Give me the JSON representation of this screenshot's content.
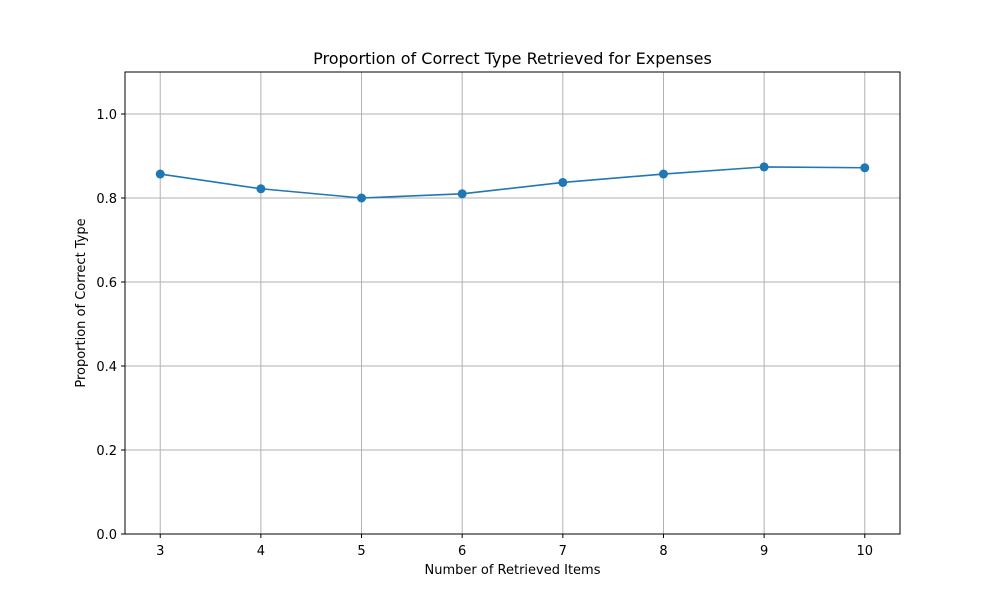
{
  "chart_data": {
    "type": "line",
    "title": "Proportion of Correct Type Retrieved for Expenses",
    "xlabel": "Number of Retrieved Items",
    "ylabel": "Proportion of Correct Type",
    "x": [
      3,
      4,
      5,
      6,
      7,
      8,
      9,
      10
    ],
    "series": [
      {
        "values": [
          0.857,
          0.822,
          0.8,
          0.81,
          0.837,
          0.857,
          0.874,
          0.872
        ],
        "color": "#1f77b4",
        "marker": "circle"
      }
    ],
    "xticks": [
      "3",
      "4",
      "5",
      "6",
      "7",
      "8",
      "9",
      "10"
    ],
    "yticks": [
      "0.0",
      "0.2",
      "0.4",
      "0.6",
      "0.8",
      "1.0"
    ],
    "xlim": [
      2.65,
      10.35
    ],
    "ylim": [
      0,
      1.1
    ],
    "grid": true,
    "legend": "none"
  }
}
